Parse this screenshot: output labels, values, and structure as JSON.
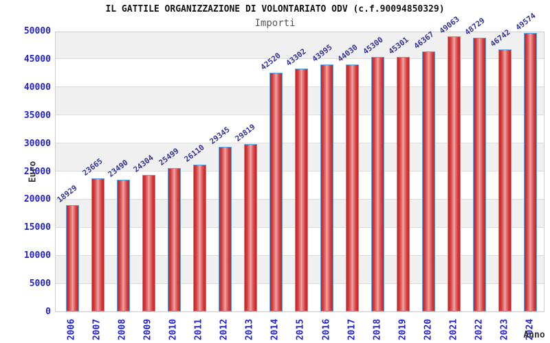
{
  "chart_data": {
    "type": "bar",
    "title": "IL GATTILE ORGANIZZAZIONE DI VOLONTARIATO ODV (c.f.90094850329)",
    "subtitle": "Importi",
    "xlabel": "Anno",
    "ylabel": "Euro",
    "categories": [
      "2006",
      "2007",
      "2008",
      "2009",
      "2010",
      "2011",
      "2012",
      "2013",
      "2014",
      "2015",
      "2016",
      "2017",
      "2018",
      "2019",
      "2020",
      "2021",
      "2022",
      "2023",
      "2024"
    ],
    "values": [
      18929,
      23665,
      23490,
      24304,
      25499,
      26110,
      29345,
      29819,
      42520,
      43302,
      43995,
      44030,
      45300,
      45301,
      46367,
      49063,
      48729,
      46742,
      49574
    ],
    "ylim": [
      0,
      50000
    ],
    "ytick_step": 5000,
    "yticks": [
      0,
      5000,
      10000,
      15000,
      20000,
      25000,
      30000,
      35000,
      40000,
      45000,
      50000
    ],
    "grid": "horizontal alternating bands",
    "legend": "none",
    "colors": {
      "bar_fill_edge": "#c52222",
      "bar_fill_center": "#f0abab",
      "bar_border": "#5aa7e8",
      "axis_tick_label": "#2222cc",
      "value_label": "#333399",
      "band_gray": "#f0f0f0",
      "band_white": "#ffffff",
      "grid_line": "#dddddd",
      "plot_border": "#cccccc",
      "title": "#111111",
      "subtitle": "#555555",
      "axis_title": "#333333"
    }
  }
}
